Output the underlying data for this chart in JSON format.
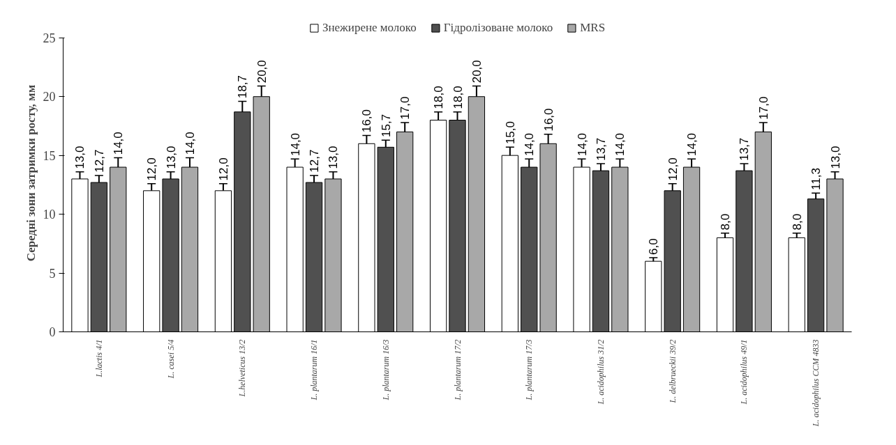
{
  "chart_data": {
    "type": "bar",
    "ylabel": "Середні зони затримки росту, мм",
    "categories": [
      "L.lactis 4/1",
      "L. casei 5/4",
      "L.helveticus 13/2",
      "L. plantarum 16/1",
      "L. plantarum 16/3",
      "L. plantarum 17/2",
      "L. plantarum 17/3",
      "L. acidophilus 31/2",
      "L. delbrueckii 39/2",
      "L. acidophilus 49/1",
      "L. acidophilus CCM 4833"
    ],
    "series": [
      {
        "name": "Знежирене молоко",
        "color": "#ffffff",
        "values": [
          13.0,
          12.0,
          12.0,
          14.0,
          16.0,
          18.0,
          15.0,
          14.0,
          6.0,
          8.0,
          8.0
        ],
        "errors": [
          0.6,
          0.6,
          0.6,
          0.7,
          0.7,
          0.7,
          0.7,
          0.7,
          0.3,
          0.4,
          0.4
        ],
        "value_labels": [
          "13,0",
          "12,0",
          "12,0",
          "14,0",
          "16,0",
          "18,0",
          "15,0",
          "14,0",
          "6,0",
          "8,0",
          "8,0"
        ]
      },
      {
        "name": "Гідролізоване молоко",
        "color": "#505050",
        "values": [
          12.7,
          13.0,
          18.7,
          12.7,
          15.7,
          18.0,
          14.0,
          13.7,
          12.0,
          13.7,
          11.3
        ],
        "errors": [
          0.6,
          0.6,
          0.9,
          0.6,
          0.6,
          0.7,
          0.7,
          0.6,
          0.6,
          0.6,
          0.5
        ],
        "value_labels": [
          "12,7",
          "13,0",
          "18,7",
          "12,7",
          "15,7",
          "18,0",
          "14,0",
          "13,7",
          "12,0",
          "13,7",
          "11,3"
        ]
      },
      {
        "name": "MRS",
        "color": "#a8a8a8",
        "values": [
          14.0,
          14.0,
          20.0,
          13.0,
          17.0,
          20.0,
          16.0,
          14.0,
          14.0,
          17.0,
          13.0
        ],
        "errors": [
          0.8,
          0.8,
          0.9,
          0.6,
          0.8,
          0.9,
          0.8,
          0.7,
          0.7,
          0.8,
          0.6
        ],
        "value_labels": [
          "14,0",
          "14,0",
          "20,0",
          "13,0",
          "17,0",
          "20,0",
          "16,0",
          "14,0",
          "14,0",
          "17,0",
          "13,0"
        ]
      }
    ],
    "ylim": [
      0,
      25
    ],
    "yticks": [
      0,
      5,
      10,
      15,
      20,
      25
    ],
    "grid": false,
    "legend": "top"
  }
}
